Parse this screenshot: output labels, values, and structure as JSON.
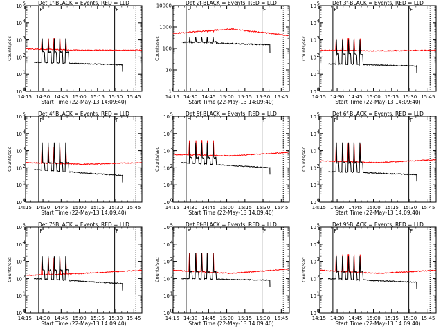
{
  "colors": {
    "events": "#000000",
    "lld": "#ff0000",
    "axes": "#000000"
  },
  "chart_data": [
    {
      "type": "line",
      "detector": "1f",
      "title": "Det 1f-BLACK = Events, RED = LLD",
      "xlabel": "Start Time (22-May-13 14:09:40)",
      "ylabel": "Counts/sec",
      "x_ticks": [
        "14:15",
        "14:30",
        "14:45",
        "15:00",
        "15:15",
        "15:30",
        "15:45"
      ],
      "ylog": true,
      "ylim": [
        1,
        100000
      ],
      "y_ticks_exp": [
        0,
        1,
        2,
        3,
        4,
        5
      ],
      "y_tick_style": "power",
      "xlim_min": [
        6,
        102
      ],
      "solid_vlines_min": [
        16.8,
        79.5
      ],
      "dotted_vlines_min": [
        97
      ],
      "vline_markers": [
        {
          "x_min": 16.8,
          "label": "F"
        },
        {
          "x_min": 79.5,
          "label": "F"
        }
      ],
      "events": {
        "start_min": 13,
        "end_min": 86,
        "base_start": 50,
        "base_end": 35,
        "spike_peak": 1200,
        "spike_base": 200
      },
      "lld": {
        "start_min": 6,
        "end_min": 102,
        "base_start": 300,
        "mid": 250,
        "base_end": 250,
        "spike_peak": 1200
      },
      "spikes_min": [
        19.6,
        24.8,
        29.6,
        34.2,
        39.2
      ]
    },
    {
      "type": "line",
      "detector": "2f",
      "title": "Det 2f-BLACK = Events, RED = LLD",
      "xlabel": "Start Time (22-May-13 14:09:40)",
      "ylabel": "Counts/sec",
      "x_ticks": [
        "14:15",
        "14:30",
        "14:45",
        "15:00",
        "15:15",
        "15:30",
        "15:45"
      ],
      "ylog": true,
      "ylim": [
        1,
        10000
      ],
      "y_ticks_exp": [
        0,
        1,
        2,
        3,
        4
      ],
      "y_tick_style": "plain",
      "y_tick_labels": [
        "1",
        "10",
        "100",
        "1000",
        "10000"
      ],
      "xlim_min": [
        6,
        102
      ],
      "solid_vlines_min": [
        16.8,
        79.5
      ],
      "dotted_vlines_min": [
        97
      ],
      "vline_markers": [
        {
          "x_min": 16.8,
          "label": "F"
        },
        {
          "x_min": 79.5,
          "label": "F"
        }
      ],
      "events": {
        "start_min": 13,
        "end_min": 86,
        "base_start": 200,
        "base_end": 150,
        "spike_peak": 350,
        "spike_base": 200
      },
      "lld": {
        "start_min": 6,
        "end_min": 102,
        "base_start": 500,
        "mid": 800,
        "base_end": 400,
        "spike_peak": 600
      },
      "spikes_min": [
        19.6,
        24.8,
        29.6,
        34.2,
        39.2
      ]
    },
    {
      "type": "line",
      "detector": "3f",
      "title": "Det 3f-BLACK = Events, RED = LLD",
      "xlabel": "Start Time (22-May-13 14:09:40)",
      "ylabel": "Counts/sec",
      "x_ticks": [
        "14:15",
        "14:30",
        "14:45",
        "15:00",
        "15:15",
        "15:30",
        "15:45"
      ],
      "ylog": true,
      "ylim": [
        1,
        100000
      ],
      "y_ticks_exp": [
        0,
        1,
        2,
        3,
        4,
        5
      ],
      "y_tick_style": "power",
      "xlim_min": [
        6,
        102
      ],
      "solid_vlines_min": [
        16.8,
        79.5
      ],
      "dotted_vlines_min": [
        97
      ],
      "vline_markers": [
        {
          "x_min": 16.8,
          "label": "F"
        },
        {
          "x_min": 79.5,
          "label": "F"
        }
      ],
      "events": {
        "start_min": 13,
        "end_min": 86,
        "base_start": 40,
        "base_end": 30,
        "spike_peak": 1000,
        "spike_base": 150
      },
      "lld": {
        "start_min": 6,
        "end_min": 102,
        "base_start": 250,
        "mid": 230,
        "base_end": 250,
        "spike_peak": 1200
      },
      "spikes_min": [
        19.6,
        24.8,
        29.6,
        34.2,
        39.2
      ]
    },
    {
      "type": "line",
      "detector": "4f",
      "title": "Det 4f-BLACK = Events, RED = LLD",
      "xlabel": "Start Time (22-May-13 14:09:40)",
      "ylabel": "Counts/sec",
      "x_ticks": [
        "14:15",
        "14:30",
        "14:45",
        "15:00",
        "15:15",
        "15:30",
        "15:45"
      ],
      "ylog": true,
      "ylim": [
        1,
        100000
      ],
      "y_ticks_exp": [
        0,
        1,
        2,
        3,
        4,
        5
      ],
      "y_tick_style": "power",
      "xlim_min": [
        6,
        102
      ],
      "solid_vlines_min": [
        16.8,
        79.5
      ],
      "dotted_vlines_min": [
        97
      ],
      "vline_markers": [
        {
          "x_min": 16.8,
          "label": "F"
        },
        {
          "x_min": 79.5,
          "label": "F"
        }
      ],
      "events": {
        "start_min": 13,
        "end_min": 86,
        "base_start": 80,
        "base_end": 35,
        "spike_peak": 3000,
        "spike_base": 200
      },
      "lld": {
        "start_min": 6,
        "end_min": 102,
        "base_start": 200,
        "mid": 160,
        "base_end": 200,
        "spike_peak": 1500
      },
      "spikes_min": [
        19.6,
        24.8,
        29.6,
        34.2,
        39.2
      ]
    },
    {
      "type": "line",
      "detector": "5f",
      "title": "Det 5f-BLACK = Events, RED = LLD",
      "xlabel": "Start Time (22-May-13 14:09:40)",
      "ylabel": "Counts/sec",
      "x_ticks": [
        "14:15",
        "14:30",
        "14:45",
        "15:00",
        "15:15",
        "15:30",
        "15:45"
      ],
      "ylog": true,
      "ylim": [
        1,
        100000
      ],
      "y_ticks_exp": [
        0,
        1,
        2,
        3,
        4,
        5
      ],
      "y_tick_style": "power",
      "xlim_min": [
        6,
        102
      ],
      "solid_vlines_min": [
        16.8,
        79.5
      ],
      "dotted_vlines_min": [
        97
      ],
      "vline_markers": [
        {
          "x_min": 16.8,
          "label": "F"
        },
        {
          "x_min": 79.5,
          "label": "F"
        }
      ],
      "events": {
        "start_min": 13,
        "end_min": 86,
        "base_start": 200,
        "base_end": 100,
        "spike_peak": 3000,
        "spike_base": 400
      },
      "lld": {
        "start_min": 6,
        "end_min": 102,
        "base_start": 600,
        "mid": 500,
        "base_end": 800,
        "spike_peak": 4000
      },
      "spikes_min": [
        19.6,
        24.8,
        29.6,
        34.2,
        39.2
      ]
    },
    {
      "type": "line",
      "detector": "6f",
      "title": "Det 6f-BLACK = Events, RED = LLD",
      "xlabel": "Start Time (22-May-13 14:09:40)",
      "ylabel": "Counts/sec",
      "x_ticks": [
        "14:15",
        "14:30",
        "14:45",
        "15:00",
        "15:15",
        "15:30",
        "15:45"
      ],
      "ylog": true,
      "ylim": [
        1,
        100000
      ],
      "y_ticks_exp": [
        0,
        1,
        2,
        3,
        4,
        5
      ],
      "y_tick_style": "power",
      "xlim_min": [
        6,
        102
      ],
      "solid_vlines_min": [
        16.8,
        79.5
      ],
      "dotted_vlines_min": [
        97
      ],
      "vline_markers": [
        {
          "x_min": 16.8,
          "label": "F"
        },
        {
          "x_min": 79.5,
          "label": "F"
        }
      ],
      "events": {
        "start_min": 13,
        "end_min": 86,
        "base_start": 60,
        "base_end": 40,
        "spike_peak": 3000,
        "spike_base": 200
      },
      "lld": {
        "start_min": 6,
        "end_min": 102,
        "base_start": 250,
        "mid": 200,
        "base_end": 300,
        "spike_peak": 2500
      },
      "spikes_min": [
        19.6,
        24.8,
        29.6,
        34.2,
        39.2
      ]
    },
    {
      "type": "line",
      "detector": "7f",
      "title": "Det 7f-BLACK = Events, RED = LLD",
      "xlabel": "Start Time (22-May-13 14:09:40)",
      "ylabel": "Counts/sec",
      "x_ticks": [
        "14:15",
        "14:30",
        "14:45",
        "15:00",
        "15:15",
        "15:30",
        "15:45"
      ],
      "ylog": true,
      "ylim": [
        1,
        100000
      ],
      "y_ticks_exp": [
        0,
        1,
        2,
        3,
        4,
        5
      ],
      "y_tick_style": "power",
      "xlim_min": [
        6,
        102
      ],
      "solid_vlines_min": [
        16.8,
        79.5
      ],
      "dotted_vlines_min": [
        97
      ],
      "vline_markers": [
        {
          "x_min": 16.8,
          "label": "F"
        },
        {
          "x_min": 79.5,
          "label": "F"
        }
      ],
      "events": {
        "start_min": 13,
        "end_min": 86,
        "base_start": 100,
        "base_end": 50,
        "spike_peak": 2000,
        "spike_base": 300
      },
      "lld": {
        "start_min": 6,
        "end_min": 102,
        "base_start": 150,
        "mid": 200,
        "base_end": 300,
        "spike_peak": 1500
      },
      "spikes_min": [
        19.6,
        24.8,
        29.6,
        34.2,
        39.2
      ]
    },
    {
      "type": "line",
      "detector": "8f",
      "title": "Det 8f-BLACK = Events, RED = LLD",
      "xlabel": "Start Time (22-May-13 14:09:40)",
      "ylabel": "Counts/sec",
      "x_ticks": [
        "14:15",
        "14:30",
        "14:45",
        "15:00",
        "15:15",
        "15:30",
        "15:45"
      ],
      "ylog": true,
      "ylim": [
        1,
        100000
      ],
      "y_ticks_exp": [
        0,
        1,
        2,
        3,
        4,
        5
      ],
      "y_tick_style": "power",
      "xlim_min": [
        6,
        102
      ],
      "solid_vlines_min": [
        16.8,
        79.5
      ],
      "dotted_vlines_min": [
        97
      ],
      "vline_markers": [
        {
          "x_min": 16.8,
          "label": "F"
        },
        {
          "x_min": 79.5,
          "label": "F"
        }
      ],
      "events": {
        "start_min": 13,
        "end_min": 86,
        "base_start": 100,
        "base_end": 80,
        "spike_peak": 3000,
        "spike_base": 250
      },
      "lld": {
        "start_min": 6,
        "end_min": 102,
        "base_start": 300,
        "mid": 200,
        "base_end": 350,
        "spike_peak": 3000
      },
      "spikes_min": [
        19.6,
        24.8,
        29.6,
        34.2,
        39.2
      ]
    },
    {
      "type": "line",
      "detector": "9f",
      "title": "Det 9f-BLACK = Events, RED = LLD",
      "xlabel": "Start Time (22-May-13 14:09:40)",
      "ylabel": "Counts/sec",
      "x_ticks": [
        "14:15",
        "14:30",
        "14:45",
        "15:00",
        "15:15",
        "15:30",
        "15:45"
      ],
      "ylog": true,
      "ylim": [
        1,
        100000
      ],
      "y_ticks_exp": [
        0,
        1,
        2,
        3,
        4,
        5
      ],
      "y_tick_style": "power",
      "xlim_min": [
        6,
        102
      ],
      "solid_vlines_min": [
        16.8,
        79.5
      ],
      "dotted_vlines_min": [
        97
      ],
      "vline_markers": [
        {
          "x_min": 16.8,
          "label": "F"
        },
        {
          "x_min": 79.5,
          "label": "F"
        }
      ],
      "events": {
        "start_min": 13,
        "end_min": 86,
        "base_start": 100,
        "base_end": 60,
        "spike_peak": 2000,
        "spike_base": 250
      },
      "lld": {
        "start_min": 6,
        "end_min": 102,
        "base_start": 300,
        "mid": 200,
        "base_end": 300,
        "spike_peak": 2500
      },
      "spikes_min": [
        19.6,
        24.8,
        29.6,
        34.2,
        39.2
      ]
    }
  ]
}
